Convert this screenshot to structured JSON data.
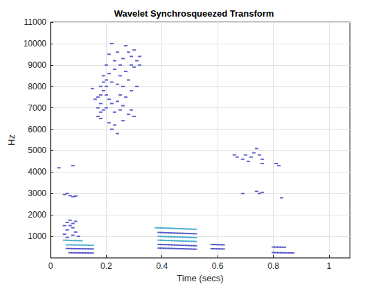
{
  "chart_data": {
    "type": "scatter",
    "title": "Wavelet Synchrosqueezed Transform",
    "x_label": "Time (secs)",
    "y_label": "Hz",
    "xlim": [
      0,
      1.075
    ],
    "xticks": [
      0,
      0.2,
      0.4,
      0.6,
      0.8,
      1
    ],
    "ylim": [
      0,
      11000
    ],
    "yticks": [
      1000,
      2000,
      3000,
      4000,
      5000,
      6000,
      7000,
      8000,
      9000,
      10000,
      11000
    ],
    "grid": true,
    "series": [
      {
        "color": "#3b3bbf",
        "x": [
          0.07,
          0.08,
          0.09,
          0.1,
          0.11,
          0.12,
          0.13,
          0.14,
          0.15,
          0.06,
          0.07,
          0.08,
          0.09,
          0.1,
          0.11,
          0.12,
          0.13,
          0.14,
          0.15,
          0.05,
          0.06,
          0.07,
          0.08,
          0.09,
          0.06,
          0.07,
          0.08,
          0.05,
          0.09,
          0.1,
          0.08,
          0.06,
          0.05,
          0.06,
          0.07,
          0.08,
          0.09,
          0.08,
          0.03,
          0.39,
          0.4,
          0.41,
          0.42,
          0.43,
          0.44,
          0.45,
          0.46,
          0.47,
          0.48,
          0.49,
          0.5,
          0.51,
          0.52,
          0.39,
          0.4,
          0.41,
          0.42,
          0.43,
          0.44,
          0.45,
          0.46,
          0.47,
          0.48,
          0.49,
          0.5,
          0.51,
          0.52,
          0.39,
          0.4,
          0.41,
          0.42,
          0.43,
          0.44,
          0.45,
          0.46,
          0.47,
          0.48,
          0.49,
          0.5,
          0.51,
          0.52,
          0.58,
          0.59,
          0.6,
          0.61,
          0.62,
          0.58,
          0.59,
          0.6,
          0.61,
          0.62,
          0.8,
          0.81,
          0.82,
          0.83,
          0.84,
          0.8,
          0.81,
          0.82,
          0.83,
          0.84,
          0.85,
          0.86,
          0.87,
          0.17,
          0.17,
          0.17,
          0.18,
          0.18,
          0.18,
          0.18,
          0.18,
          0.19,
          0.19,
          0.19,
          0.19,
          0.2,
          0.2,
          0.2,
          0.2,
          0.2,
          0.21,
          0.21,
          0.21,
          0.21,
          0.22,
          0.22,
          0.22,
          0.22,
          0.23,
          0.23,
          0.23,
          0.23,
          0.24,
          0.24,
          0.24,
          0.24,
          0.25,
          0.25,
          0.25,
          0.25,
          0.26,
          0.26,
          0.26,
          0.26,
          0.27,
          0.27,
          0.27,
          0.28,
          0.28,
          0.28,
          0.29,
          0.29,
          0.29,
          0.29,
          0.3,
          0.3,
          0.3,
          0.31,
          0.31,
          0.32,
          0.32,
          0.16,
          0.15,
          0.66,
          0.67,
          0.69,
          0.7,
          0.71,
          0.72,
          0.73,
          0.74,
          0.75,
          0.76,
          0.76,
          0.74,
          0.75,
          0.76,
          0.69,
          0.81,
          0.83,
          0.82
        ],
        "values": [
          235,
          232,
          230,
          228,
          226,
          225,
          224,
          222,
          220,
          430,
          428,
          425,
          423,
          420,
          418,
          416,
          415,
          413,
          410,
          1100,
          1300,
          1500,
          1600,
          1700,
          1650,
          1750,
          1400,
          1500,
          1200,
          1000,
          1050,
          950,
          2950,
          3000,
          2900,
          2850,
          2880,
          4300,
          4200,
          450,
          446,
          442,
          438,
          435,
          431,
          427,
          424,
          420,
          416,
          412,
          408,
          404,
          400,
          1180,
          1175,
          1170,
          1165,
          1160,
          1155,
          1150,
          1146,
          1142,
          1138,
          1134,
          1130,
          1125,
          1120,
          620,
          615,
          610,
          606,
          601,
          597,
          592,
          588,
          583,
          578,
          574,
          569,
          565,
          560,
          620,
          615,
          610,
          605,
          600,
          420,
          418,
          415,
          412,
          410,
          500,
          498,
          496,
          494,
          492,
          240,
          238,
          236,
          234,
          232,
          230,
          228,
          226,
          7500,
          7000,
          6600,
          6500,
          6800,
          7200,
          7600,
          8000,
          7800,
          8200,
          8500,
          6900,
          8300,
          8000,
          7600,
          7000,
          9000,
          9500,
          8600,
          7400,
          6300,
          10000,
          8200,
          7200,
          6000,
          9200,
          8800,
          6800,
          6200,
          9600,
          8100,
          7300,
          5800,
          9000,
          8500,
          7600,
          6900,
          9300,
          8000,
          7100,
          6400,
          9900,
          8700,
          7500,
          9600,
          8300,
          6700,
          9400,
          9000,
          7800,
          6900,
          9700,
          8900,
          6600,
          9200,
          8000,
          9400,
          9000,
          7400,
          7900,
          4800,
          4700,
          4600,
          4800,
          4500,
          4700,
          4900,
          5100,
          4800,
          4400,
          4600,
          3100,
          3000,
          3050,
          3000,
          4400,
          2800,
          4300
        ]
      },
      {
        "color": "#2f9fc4",
        "x": [
          0.06,
          0.07,
          0.08,
          0.09,
          0.1,
          0.11,
          0.12,
          0.13,
          0.14,
          0.15,
          0.05,
          0.06,
          0.07,
          0.08,
          0.09,
          0.1,
          0.11,
          0.39,
          0.4,
          0.41,
          0.42,
          0.43,
          0.44,
          0.45,
          0.46,
          0.47,
          0.48,
          0.49,
          0.5,
          0.51,
          0.52,
          0.39,
          0.4,
          0.41,
          0.42,
          0.43,
          0.44,
          0.45,
          0.46,
          0.47,
          0.48,
          0.49,
          0.5,
          0.51,
          0.52,
          0.38,
          0.39,
          0.4,
          0.41,
          0.42,
          0.43,
          0.44,
          0.45,
          0.46,
          0.47,
          0.48,
          0.49,
          0.5,
          0.51,
          0.52
        ],
        "values": [
          600,
          600,
          598,
          596,
          594,
          592,
          590,
          588,
          586,
          584,
          820,
          815,
          810,
          805,
          800,
          798,
          795,
          820,
          815,
          811,
          806,
          802,
          797,
          793,
          788,
          784,
          779,
          775,
          770,
          765,
          760,
          1000,
          995,
          990,
          986,
          981,
          977,
          972,
          968,
          963,
          958,
          954,
          949,
          945,
          940,
          1400,
          1395,
          1390,
          1385,
          1380,
          1375,
          1370,
          1365,
          1360,
          1355,
          1350,
          1345,
          1340,
          1335,
          1330
        ]
      }
    ]
  }
}
